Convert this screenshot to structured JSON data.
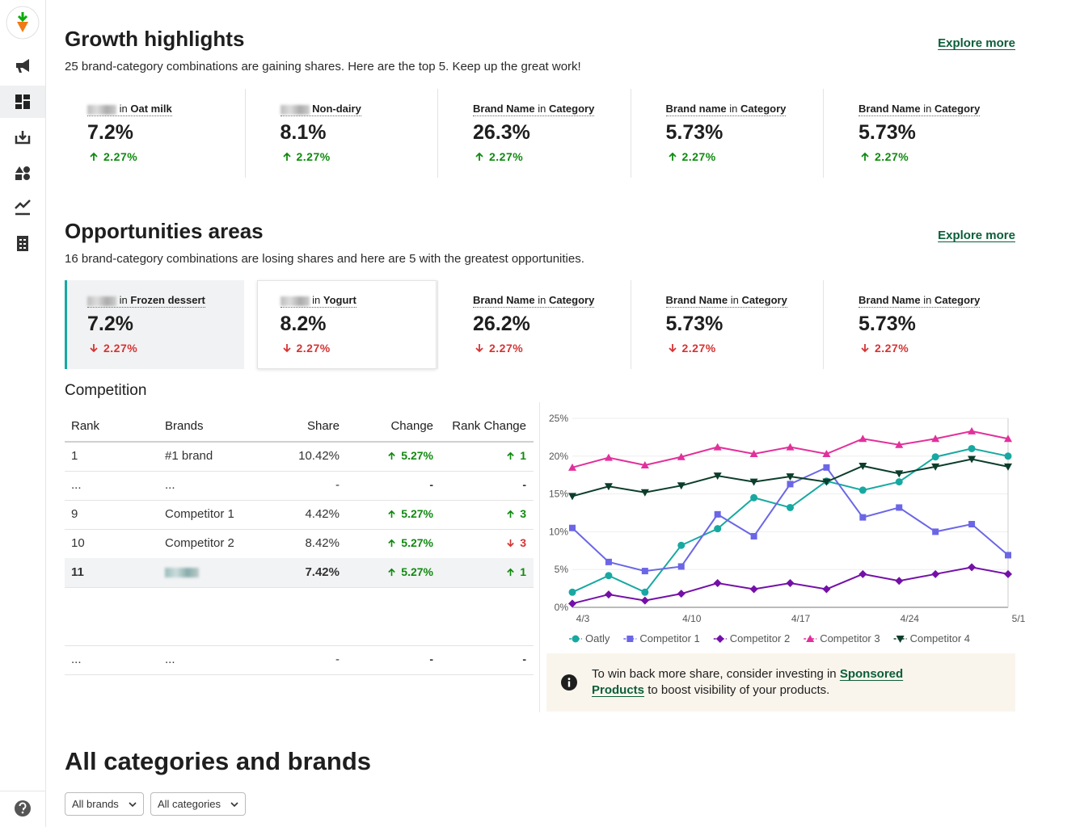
{
  "growth": {
    "title": "Growth highlights",
    "subtitle": "25 brand-category combinations are gaining shares. Here are the top 5. Keep up the great work!",
    "explore": "Explore more",
    "cards": [
      {
        "in": "in",
        "category": "Oat milk",
        "value": "7.2%",
        "change": "2.27%",
        "trend": "up"
      },
      {
        "category": "Non-dairy",
        "value": "8.1%",
        "change": "2.27%",
        "trend": "up"
      },
      {
        "brand": "Brand Name",
        "in": "in",
        "category": "Category",
        "value": "26.3%",
        "change": "2.27%",
        "trend": "up"
      },
      {
        "brand": "Brand name",
        "in": "in",
        "category": "Category",
        "value": "5.73%",
        "change": "2.27%",
        "trend": "up"
      },
      {
        "brand": "Brand Name",
        "in": "in",
        "category": "Category",
        "value": "5.73%",
        "change": "2.27%",
        "trend": "up"
      }
    ]
  },
  "opportunities": {
    "title": "Opportunities areas",
    "subtitle": "16 brand-category combinations are losing shares and here are 5 with the greatest opportunities.",
    "explore": "Explore more",
    "cards": [
      {
        "in": "in",
        "category": "Frozen dessert",
        "value": "7.2%",
        "change": "2.27%",
        "trend": "down"
      },
      {
        "in": "in",
        "category": "Yogurt",
        "value": "8.2%",
        "change": "2.27%",
        "trend": "down"
      },
      {
        "brand": "Brand Name",
        "in": "in",
        "category": "Category",
        "value": "26.2%",
        "change": "2.27%",
        "trend": "down"
      },
      {
        "brand": "Brand Name",
        "in": "in",
        "category": "Category",
        "value": "5.73%",
        "change": "2.27%",
        "trend": "down"
      },
      {
        "brand": "Brand Name",
        "in": "in",
        "category": "Category",
        "value": "5.73%",
        "change": "2.27%",
        "trend": "down"
      }
    ]
  },
  "competition": {
    "title": "Competition",
    "headers": [
      "Rank",
      "Brands",
      "Share",
      "Change",
      "Rank Change"
    ],
    "rows": [
      {
        "rank": "1",
        "brand": "#1 brand",
        "share": "10.42%",
        "change": "5.27%",
        "change_trend": "up",
        "rank_change": "1",
        "rank_trend": "up"
      },
      {
        "rank": "...",
        "brand": "...",
        "share": "-",
        "change": "-",
        "rank_change": "-"
      },
      {
        "rank": "9",
        "brand": "Competitor 1",
        "share": "4.42%",
        "change": "5.27%",
        "change_trend": "up",
        "rank_change": "3",
        "rank_trend": "up"
      },
      {
        "rank": "10",
        "brand": "Competitor 2",
        "share": "8.42%",
        "change": "5.27%",
        "change_trend": "up",
        "rank_change": "3",
        "rank_trend": "down"
      },
      {
        "rank": "11",
        "share": "7.42%",
        "change": "5.27%",
        "change_trend": "up",
        "rank_change": "1",
        "rank_trend": "up"
      }
    ],
    "last_row": {
      "rank": "...",
      "brand": "...",
      "share": "-",
      "change": "-",
      "rank_change": "-"
    },
    "info": {
      "before": "To win back more share, consider investing in",
      "link": "Sponsored Products",
      "after": "to boost visibility of your products."
    }
  },
  "chart_data": {
    "type": "line",
    "categories": [
      "4/3",
      null,
      null,
      "4/10",
      null,
      null,
      "4/17",
      null,
      null,
      "4/24",
      null,
      null,
      "5/1"
    ],
    "ylim": [
      0,
      25
    ],
    "yticks": [
      {
        "value": 0,
        "label": "0%"
      },
      {
        "value": 5,
        "label": "5%"
      },
      {
        "value": 10,
        "label": "10%"
      },
      {
        "value": 15,
        "label": "15%"
      },
      {
        "value": 20,
        "label": "20%"
      },
      {
        "value": 25,
        "label": "25%"
      }
    ],
    "grid": true,
    "series": [
      {
        "name": "Oatly",
        "color": "#17a9a1",
        "marker": "circle",
        "values": [
          2,
          4.2,
          2,
          8.2,
          10.4,
          14.5,
          13.2,
          16.7,
          15.5,
          16.6,
          19.9,
          21,
          20
        ]
      },
      {
        "name": "Competitor 1",
        "color": "#6b66e6",
        "marker": "square",
        "values": [
          10.5,
          6,
          4.8,
          5.4,
          12.3,
          9.4,
          16.3,
          18.5,
          11.9,
          13.2,
          10,
          11,
          6.9
        ]
      },
      {
        "name": "Competitor 2",
        "color": "#7410a8",
        "marker": "diamond",
        "values": [
          0.5,
          1.7,
          0.9,
          1.8,
          3.2,
          2.4,
          3.2,
          2.4,
          4.4,
          3.5,
          4.4,
          5.3,
          4.4
        ]
      },
      {
        "name": "Competitor 3",
        "color": "#e2309b",
        "marker": "triangle-up",
        "values": [
          18.5,
          19.8,
          18.8,
          19.9,
          21.2,
          20.3,
          21.2,
          20.3,
          22.3,
          21.5,
          22.3,
          23.3,
          22.3
        ]
      },
      {
        "name": "Competitor 4",
        "color": "#0c3d2b",
        "marker": "triangle-down",
        "values": [
          14.7,
          16,
          15.2,
          16.1,
          17.4,
          16.6,
          17.3,
          16.6,
          18.7,
          17.7,
          18.6,
          19.6,
          18.6
        ]
      }
    ]
  },
  "all": {
    "title": "All categories and brands",
    "filters": [
      "All brands",
      "All categories"
    ]
  }
}
